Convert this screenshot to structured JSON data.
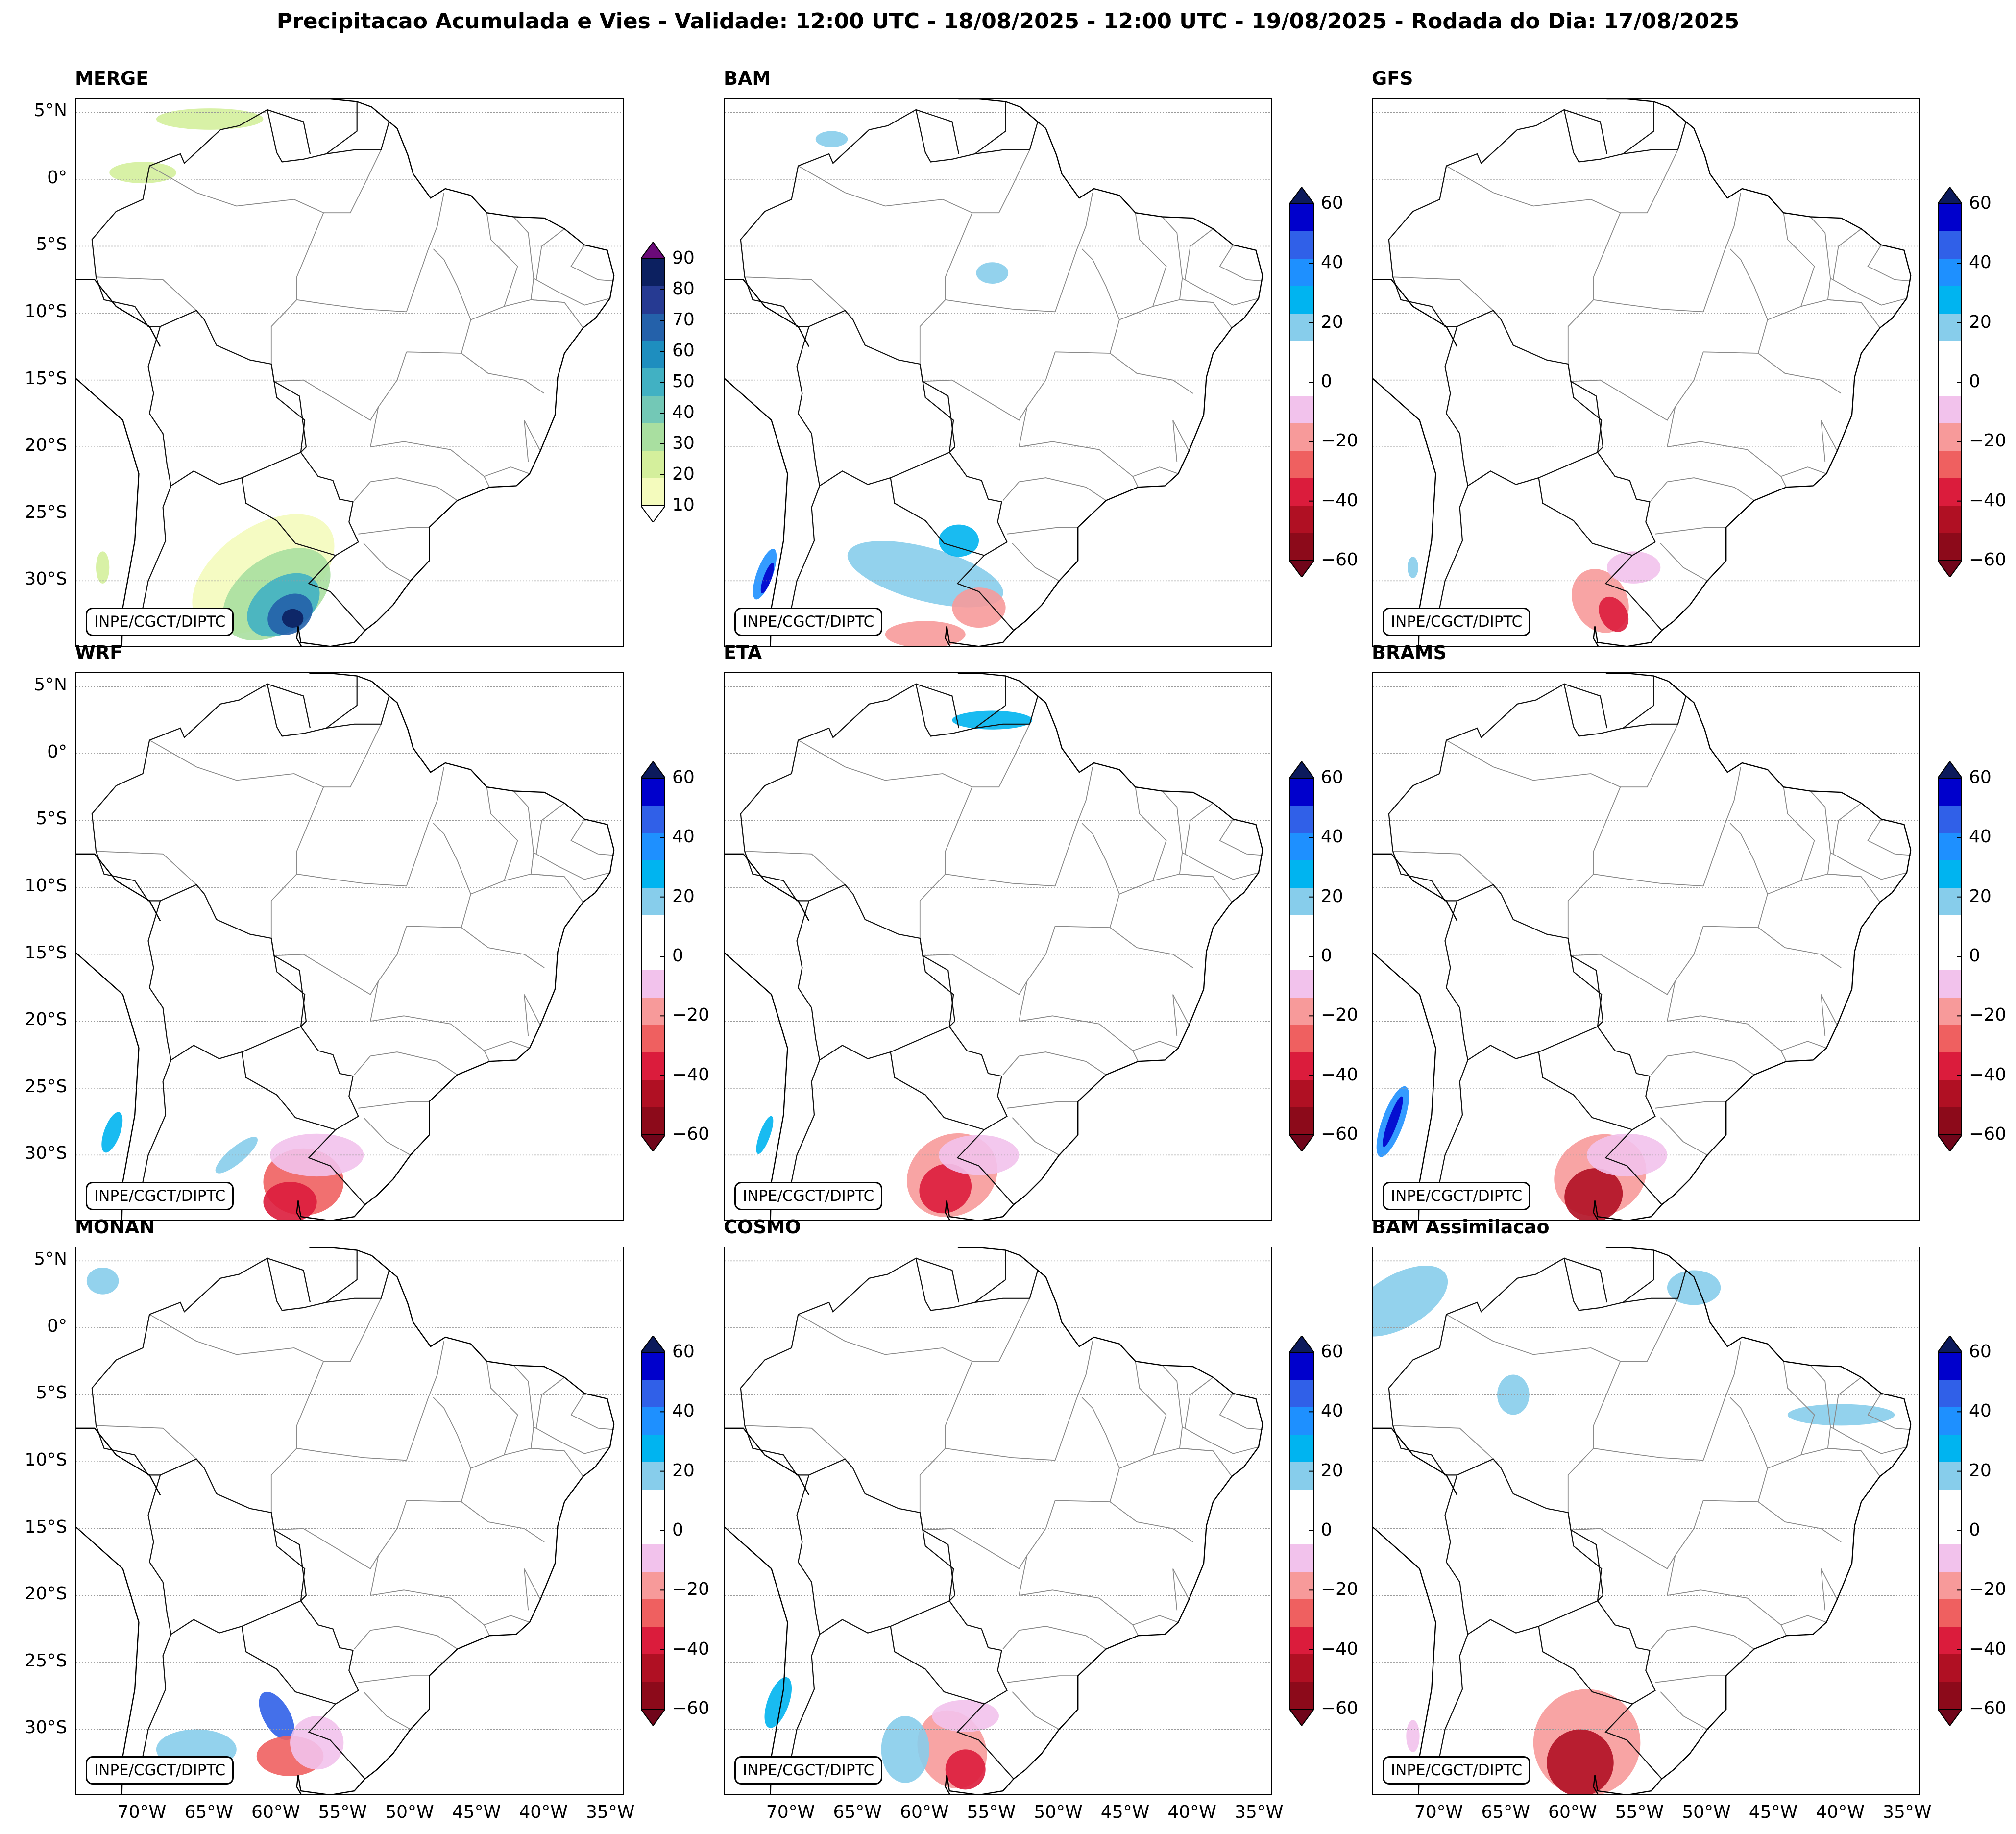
{
  "figure": {
    "title": "Precipitacao Acumulada e Vies - Validade: 12:00 UTC - 18/08/2025 - 12:00 UTC - 19/08/2025 - Rodada do Dia: 17/08/2025"
  },
  "map": {
    "lon_range": [
      -75,
      -34
    ],
    "lat_range": [
      -35,
      6
    ],
    "lat_ticks": [
      {
        "value": 5,
        "label": "5°N"
      },
      {
        "value": 0,
        "label": "0°"
      },
      {
        "value": -5,
        "label": "5°S"
      },
      {
        "value": -10,
        "label": "10°S"
      },
      {
        "value": -15,
        "label": "15°S"
      },
      {
        "value": -20,
        "label": "20°S"
      },
      {
        "value": -25,
        "label": "25°S"
      },
      {
        "value": -30,
        "label": "30°S"
      }
    ],
    "lon_ticks": [
      {
        "value": -70,
        "label": "70°W"
      },
      {
        "value": -65,
        "label": "65°W"
      },
      {
        "value": -60,
        "label": "60°W"
      },
      {
        "value": -55,
        "label": "55°W"
      },
      {
        "value": -50,
        "label": "50°W"
      },
      {
        "value": -45,
        "label": "45°W"
      },
      {
        "value": -40,
        "label": "40°W"
      },
      {
        "value": -35,
        "label": "35°W"
      }
    ],
    "credit": "INPE/CGCT/DIPTC"
  },
  "colorbars": {
    "precip": {
      "ticks": [
        "10",
        "20",
        "30",
        "40",
        "50",
        "60",
        "70",
        "80",
        "90"
      ],
      "colors": [
        "#f4fbbd",
        "#d4ef9c",
        "#a9dfa0",
        "#73c8b6",
        "#41b1c3",
        "#1e8ebf",
        "#2461aa",
        "#263a92",
        "#0c2060"
      ],
      "extend_colors": {
        "under": "#ffffff",
        "over": "#6a0a78"
      }
    },
    "bias": {
      "ticks": [
        "60",
        "40",
        "20",
        "0",
        "−20",
        "−40",
        "−60"
      ],
      "colors": [
        "#0000cc",
        "#3060e8",
        "#1e90ff",
        "#00b4f0",
        "#87cdeb",
        "#ffffff",
        "#ffffff",
        "#f2c2ec",
        "#f79a9a",
        "#ef6060",
        "#db1c3c",
        "#b01023",
        "#8c0a1a"
      ],
      "extend_colors": {
        "over": "#0c1a5c",
        "under": "#70051a"
      }
    }
  },
  "panels": [
    {
      "title": "MERGE",
      "type": "precip"
    },
    {
      "title": "BAM",
      "type": "bias"
    },
    {
      "title": "GFS",
      "type": "bias"
    },
    {
      "title": "WRF",
      "type": "bias"
    },
    {
      "title": "ETA",
      "type": "bias"
    },
    {
      "title": "BRAMS",
      "type": "bias"
    },
    {
      "title": "MONAN",
      "type": "bias"
    },
    {
      "title": "COSMO",
      "type": "bias"
    },
    {
      "title": "BAM Assimilacao",
      "type": "bias"
    }
  ]
}
